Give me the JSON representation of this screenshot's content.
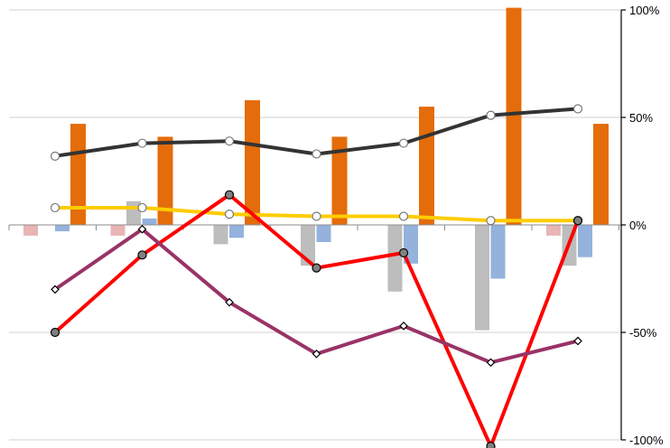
{
  "chart_data": {
    "type": "bar",
    "title": "",
    "xlabel": "",
    "ylabel": "",
    "categories": [
      "",
      "",
      "",
      "",
      "",
      "",
      ""
    ],
    "ylim": [
      -100,
      100
    ],
    "y_ticks": [
      {
        "value": 100,
        "label": "100%"
      },
      {
        "value": 50,
        "label": "50%"
      },
      {
        "value": 0,
        "label": "0%"
      },
      {
        "value": -50,
        "label": "-50%"
      },
      {
        "value": -100,
        "label": "-100%"
      }
    ],
    "y_axis_side": "right",
    "grid": true,
    "legend": "none",
    "bar_series": [
      {
        "color": "#e8b4b4",
        "values": [
          -5,
          -5,
          0,
          0,
          0,
          0,
          -5
        ]
      },
      {
        "color": "#bdbdbd",
        "values": [
          0,
          11,
          -9,
          -19,
          -31,
          -49,
          -19
        ]
      },
      {
        "color": "#94b2dc",
        "values": [
          -3,
          3,
          -6,
          -8,
          -18,
          -25,
          -15
        ]
      },
      {
        "color": "#e46c0a",
        "values": [
          47,
          41,
          58,
          41,
          55,
          101,
          47
        ]
      }
    ],
    "line_series": [
      {
        "color": "#333333",
        "marker": "circle-open",
        "values": [
          32,
          38,
          39,
          33,
          38,
          51,
          54
        ]
      },
      {
        "color": "#ffcc00",
        "marker": "circle-open",
        "values": [
          8,
          8,
          5,
          4,
          4,
          2,
          2
        ]
      },
      {
        "color": "#ff0000",
        "marker": "circle-filled",
        "values": [
          -50,
          -14,
          14,
          -20,
          -13,
          -103,
          2
        ]
      },
      {
        "color": "#993366",
        "marker": "diamond-open",
        "values": [
          -30,
          -2,
          -36,
          -60,
          -47,
          -64,
          -54
        ]
      }
    ]
  }
}
